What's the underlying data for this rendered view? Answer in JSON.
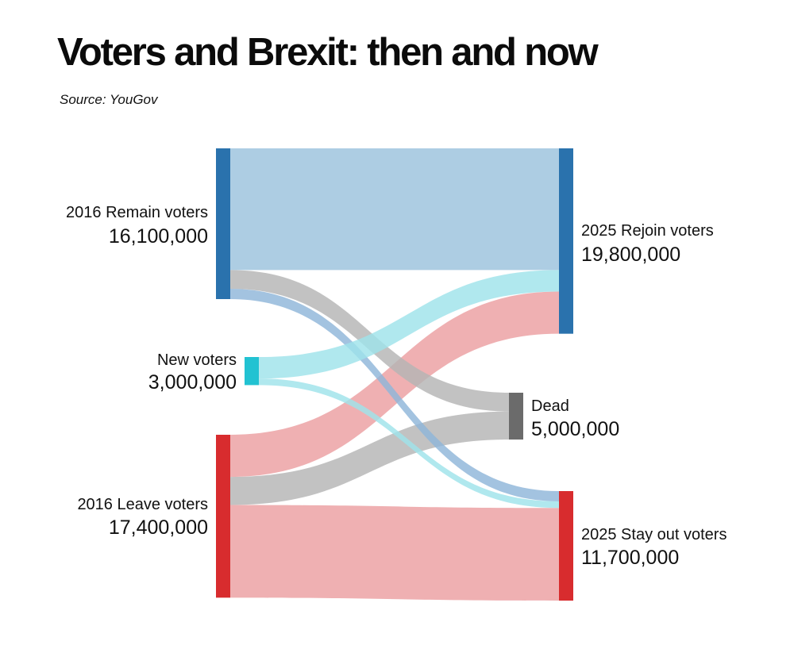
{
  "title": "Voters and Brexit: then and now",
  "source": "Source: YouGov",
  "chart_data": {
    "type": "sankey",
    "title": "Voters and Brexit: then and now",
    "subtitle": "Source: YouGov",
    "nodes": [
      {
        "id": "remain2016",
        "name": "2016 Remain voters",
        "value_label": "16,100,000",
        "value": 16100000,
        "column": "left",
        "color": "#2a72ad"
      },
      {
        "id": "new",
        "name": "New voters",
        "value_label": "3,000,000",
        "value": 3000000,
        "column": "left",
        "color": "#22c2d2"
      },
      {
        "id": "leave2016",
        "name": "2016 Leave voters",
        "value_label": "17,400,000",
        "value": 17400000,
        "column": "left",
        "color": "#d82c2e"
      },
      {
        "id": "rejoin2025",
        "name": "2025 Rejoin voters",
        "value_label": "19,800,000",
        "value": 19800000,
        "column": "right",
        "color": "#2a72ad"
      },
      {
        "id": "dead",
        "name": "Dead",
        "value_label": "5,000,000",
        "value": 5000000,
        "column": "middle",
        "color": "#6b6b6b"
      },
      {
        "id": "stayout2025",
        "name": "2025 Stay out voters",
        "value_label": "11,700,000",
        "value": 11700000,
        "column": "right",
        "color": "#d82c2e"
      }
    ],
    "links": [
      {
        "source": "remain2016",
        "target": "rejoin2025",
        "value": 13000000,
        "color": "#9bc2dd"
      },
      {
        "source": "remain2016",
        "target": "dead",
        "value": 2000000,
        "color": "#b4b4b4"
      },
      {
        "source": "remain2016",
        "target": "stayout2025",
        "value": 1100000,
        "color": "#8fb6d9"
      },
      {
        "source": "new",
        "target": "rejoin2025",
        "value": 2300000,
        "color": "#9fe3ea"
      },
      {
        "source": "new",
        "target": "stayout2025",
        "value": 700000,
        "color": "#9fe3ea"
      },
      {
        "source": "leave2016",
        "target": "rejoin2025",
        "value": 4500000,
        "color": "#ec9fa1"
      },
      {
        "source": "leave2016",
        "target": "dead",
        "value": 3000000,
        "color": "#b4b4b4"
      },
      {
        "source": "leave2016",
        "target": "stayout2025",
        "value": 9900000,
        "color": "#ec9fa1"
      }
    ]
  }
}
